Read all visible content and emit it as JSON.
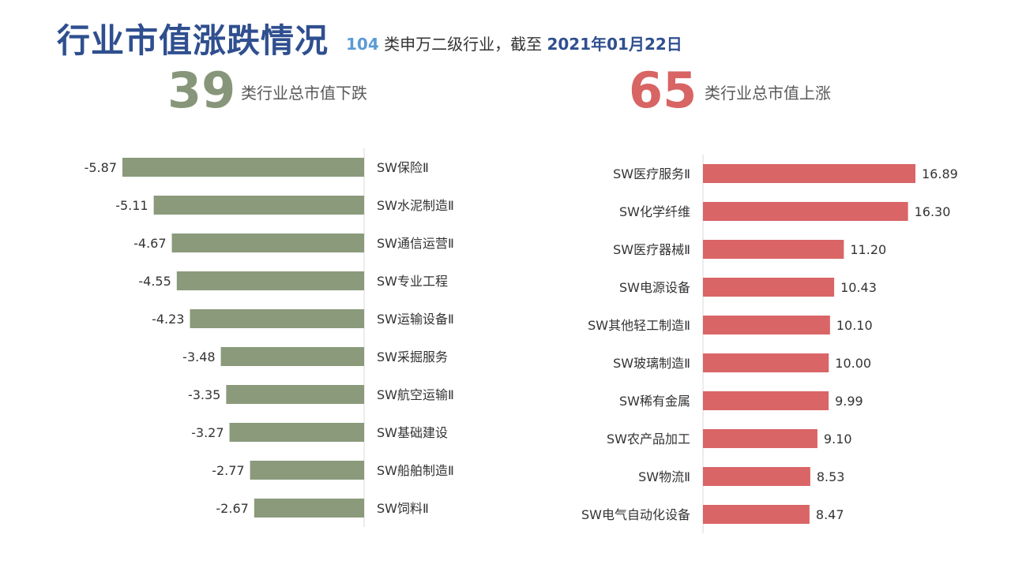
{
  "header": {
    "title": "行业市值涨跌情况",
    "subtitle_count": "104",
    "subtitle_mid": " 类申万二级行业，截至 ",
    "subtitle_date": "2021年01月22日"
  },
  "summary": {
    "down_count": "39",
    "down_label": "类行业总市值下跌",
    "up_count": "65",
    "up_label": "类行业总市值上涨"
  },
  "colors": {
    "down": "#8a9a7b",
    "up": "#d96566",
    "title": "#2f4f8f",
    "axis": "#d9d9d9"
  },
  "chart_data": [
    {
      "type": "bar",
      "orientation": "horizontal",
      "categories": [
        "SW保险Ⅱ",
        "SW水泥制造Ⅱ",
        "SW通信运营Ⅱ",
        "SW专业工程",
        "SW运输设备Ⅱ",
        "SW采掘服务",
        "SW航空运输Ⅱ",
        "SW基础建设",
        "SW船舶制造Ⅱ",
        "SW饲料Ⅱ"
      ],
      "values": [
        -5.87,
        -5.11,
        -4.67,
        -4.55,
        -4.23,
        -3.48,
        -3.35,
        -3.27,
        -2.77,
        -2.67
      ],
      "data_labels": [
        "-5.87",
        "-5.11",
        "-4.67",
        "-4.55",
        "-4.23",
        "-3.48",
        "-3.35",
        "-3.27",
        "-2.77",
        "-2.67"
      ],
      "xlim": [
        -5.87,
        0
      ],
      "grid": false,
      "legend": "none"
    },
    {
      "type": "bar",
      "orientation": "horizontal",
      "categories": [
        "SW医疗服务Ⅱ",
        "SW化学纤维",
        "SW医疗器械Ⅱ",
        "SW电源设备",
        "SW其他轻工制造Ⅱ",
        "SW玻璃制造Ⅱ",
        "SW稀有金属",
        "SW农产品加工",
        "SW物流Ⅱ",
        "SW电气自动化设备"
      ],
      "values": [
        16.89,
        16.3,
        11.2,
        10.43,
        10.1,
        10.0,
        9.99,
        9.1,
        8.53,
        8.47
      ],
      "data_labels": [
        "16.89",
        "16.30",
        "11.20",
        "10.43",
        "10.10",
        "10.00",
        "9.99",
        "9.10",
        "8.53",
        "8.47"
      ],
      "xlim": [
        0,
        16.89
      ],
      "grid": false,
      "legend": "none"
    }
  ]
}
